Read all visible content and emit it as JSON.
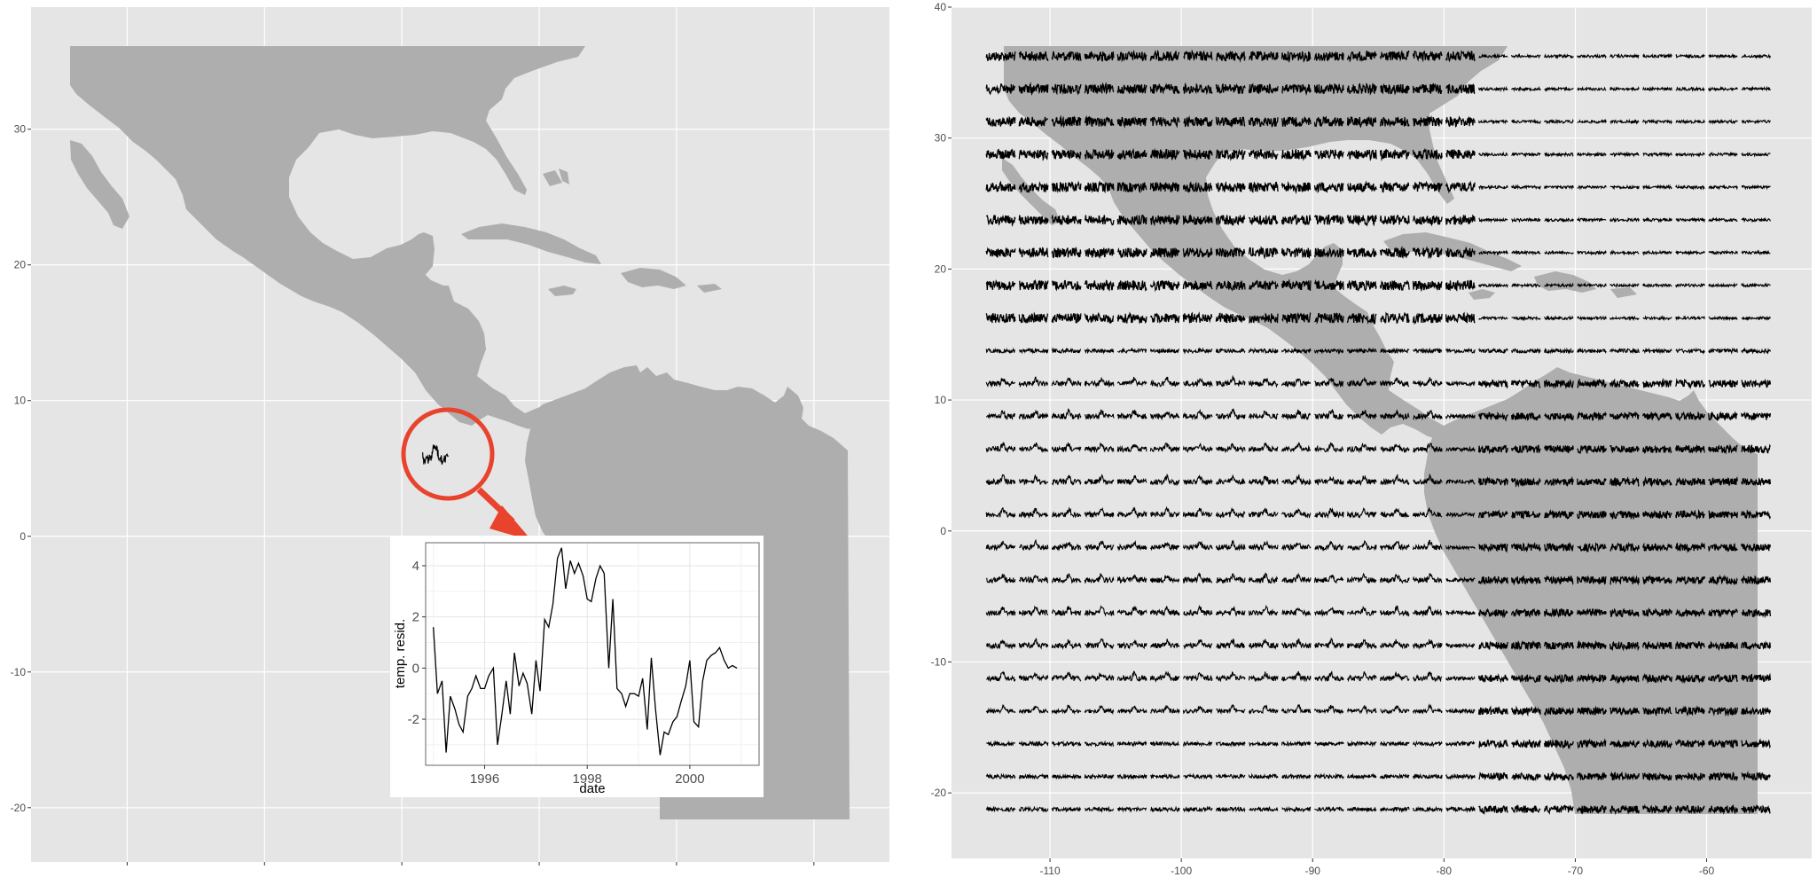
{
  "colors": {
    "panel_background": "#e5e5e5",
    "grid": "#ffffff",
    "land": "#aeaeae",
    "glyph": "#000000",
    "highlight": "#e8432d",
    "inset_background": "#ffffff"
  },
  "left_map": {
    "y_tick_labels": [
      "30",
      "20",
      "10",
      "0",
      "-10",
      "-20"
    ],
    "y_tick_values": [
      30,
      20,
      10,
      0,
      -10,
      -20
    ],
    "x_tick_values": [
      -110,
      -100,
      -90,
      -80,
      -70,
      -60
    ],
    "ylim": [
      -24,
      39
    ],
    "xlim": [
      -117,
      -54.5
    ],
    "highlight_location": {
      "lon": -87.5,
      "lat": 6.0
    }
  },
  "right_map": {
    "y_tick_labels": [
      "40",
      "30",
      "20",
      "10",
      "0",
      "-10",
      "-20"
    ],
    "y_tick_values": [
      40,
      30,
      20,
      10,
      0,
      -10,
      -20
    ],
    "x_tick_labels": [
      "-110",
      "-100",
      "-90",
      "-80",
      "-70",
      "-60"
    ],
    "x_tick_values": [
      -110,
      -100,
      -90,
      -80,
      -70,
      -60
    ],
    "xlim": [
      -117.5,
      -52
    ],
    "ylim": [
      -25,
      40
    ],
    "glyph_grid": {
      "lon_start": -113.75,
      "lon_step": 2.5,
      "lon_count": 24,
      "lat_start": 36.25,
      "lat_step": -2.5,
      "lat_count": 24
    }
  },
  "inset": {
    "xlabel": "date",
    "ylabel": "temp. resid.",
    "x_tick_labels": [
      "1996",
      "1998",
      "2000"
    ],
    "x_tick_values": [
      1996,
      1998,
      2000
    ],
    "y_tick_labels": [
      "4",
      "2",
      "0",
      "-2"
    ],
    "y_tick_values": [
      4,
      2,
      0,
      -2
    ],
    "xlim": [
      1994.85,
      2001.35
    ],
    "ylim": [
      -3.8,
      4.9
    ]
  },
  "chart_data": {
    "type": "line",
    "title": "",
    "xlabel": "date",
    "ylabel": "temp. resid.",
    "xlim": [
      1994.85,
      2001.35
    ],
    "ylim": [
      -3.8,
      4.9
    ],
    "x": [
      1995.0,
      1995.08,
      1995.17,
      1995.25,
      1995.33,
      1995.42,
      1995.5,
      1995.58,
      1995.67,
      1995.75,
      1995.83,
      1995.92,
      1996.0,
      1996.08,
      1996.17,
      1996.25,
      1996.33,
      1996.42,
      1996.5,
      1996.58,
      1996.67,
      1996.75,
      1996.83,
      1996.92,
      1997.0,
      1997.08,
      1997.17,
      1997.25,
      1997.33,
      1997.42,
      1997.5,
      1997.58,
      1997.67,
      1997.75,
      1997.83,
      1997.92,
      1998.0,
      1998.08,
      1998.17,
      1998.25,
      1998.33,
      1998.42,
      1998.5,
      1998.58,
      1998.67,
      1998.75,
      1998.83,
      1998.92,
      1999.0,
      1999.08,
      1999.17,
      1999.25,
      1999.33,
      1999.42,
      1999.5,
      1999.58,
      1999.67,
      1999.75,
      1999.83,
      1999.92,
      2000.0,
      2000.08,
      2000.17,
      2000.25,
      2000.33,
      2000.42,
      2000.5,
      2000.58,
      2000.67,
      2000.75,
      2000.83,
      2000.92
    ],
    "y": [
      1.6,
      -1.0,
      -0.5,
      -3.3,
      -1.1,
      -1.6,
      -2.2,
      -2.5,
      -1.1,
      -0.8,
      -0.3,
      -0.8,
      -0.8,
      -0.3,
      0.0,
      -3.0,
      -1.9,
      -0.5,
      -1.8,
      0.6,
      -0.7,
      -0.2,
      -0.6,
      -1.8,
      0.3,
      -0.9,
      1.9,
      1.6,
      2.5,
      4.3,
      4.7,
      3.1,
      4.2,
      3.7,
      4.1,
      3.6,
      2.7,
      2.6,
      3.5,
      4.0,
      3.7,
      0.0,
      2.7,
      -0.8,
      -1.0,
      -1.5,
      -1.0,
      -1.0,
      -1.1,
      -0.4,
      -2.4,
      0.4,
      -1.6,
      -3.4,
      -2.5,
      -2.6,
      -2.1,
      -1.9,
      -1.3,
      -0.7,
      0.3,
      -2.1,
      -2.3,
      -0.5,
      0.3,
      0.5,
      0.6,
      0.8,
      0.3,
      0.0,
      0.1,
      0.0
    ]
  }
}
